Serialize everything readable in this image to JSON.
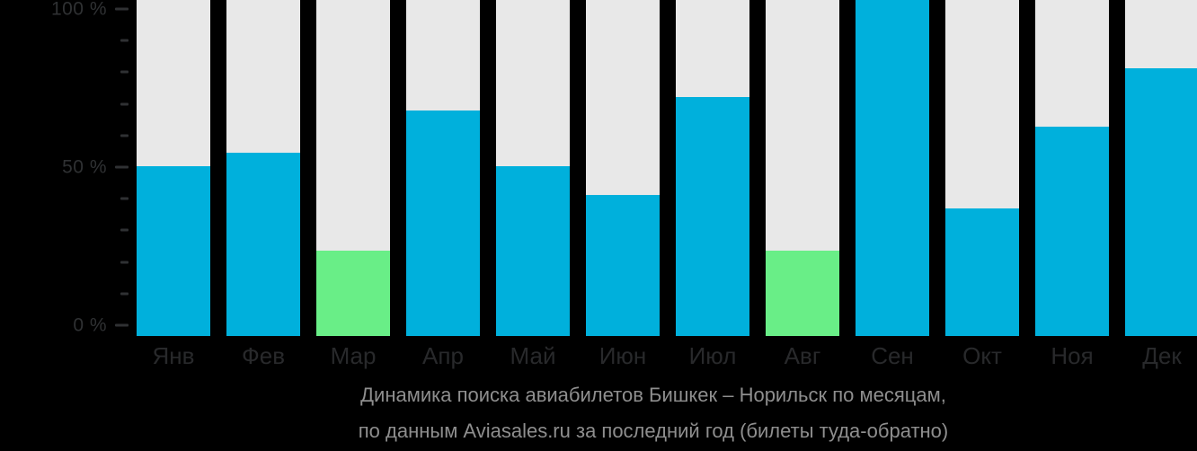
{
  "page": {
    "background_color": "#000000"
  },
  "chart_data": {
    "type": "bar",
    "title": "Динамика поиска авиабилетов Бишкек – Норильск по месяцам, по данным Aviasales.ru за последний год (билеты туда-обратно)",
    "caption_lines": [
      "Динамика поиска авиабилетов Бишкек – Норильск по месяцам,",
      "по данным Aviasales.ru за последний год (билеты туда-обратно)"
    ],
    "categories": [
      "Янв",
      "Фев",
      "Мар",
      "Апр",
      "Май",
      "Июн",
      "Июл",
      "Авг",
      "Сен",
      "Окт",
      "Ноя",
      "Дек"
    ],
    "values": [
      52,
      56,
      26,
      69,
      52,
      43,
      73,
      26,
      100,
      39,
      64,
      82
    ],
    "unit": "%",
    "bar_colors": [
      "#00B0DC",
      "#00B0DC",
      "#69EE87",
      "#00B0DC",
      "#00B0DC",
      "#00B0DC",
      "#00B0DC",
      "#69EE87",
      "#00B0DC",
      "#00B0DC",
      "#00B0DC",
      "#00B0DC"
    ],
    "ylim": [
      0,
      100
    ],
    "grid": "off",
    "legend": "none",
    "yticks": [
      {
        "value": 100,
        "label": "100 %",
        "major": true
      },
      {
        "value": 90,
        "label": "",
        "major": false
      },
      {
        "value": 80,
        "label": "",
        "major": false
      },
      {
        "value": 70,
        "label": "",
        "major": false
      },
      {
        "value": 60,
        "label": "",
        "major": false
      },
      {
        "value": 50,
        "label": "50 %",
        "major": true
      },
      {
        "value": 40,
        "label": "",
        "major": false
      },
      {
        "value": 30,
        "label": "",
        "major": false
      },
      {
        "value": 20,
        "label": "",
        "major": false
      },
      {
        "value": 10,
        "label": "",
        "major": false
      },
      {
        "value": 0,
        "label": "0 %",
        "major": true
      }
    ],
    "colors": {
      "bar_default": "#00B0DC",
      "bar_highlight": "#69EE87",
      "bar_track": "#E8E8E8",
      "axis_tick_label": "#2F3133",
      "month_label": "#28292B",
      "caption_text": "#8E8E8E",
      "background": "#000000"
    }
  }
}
